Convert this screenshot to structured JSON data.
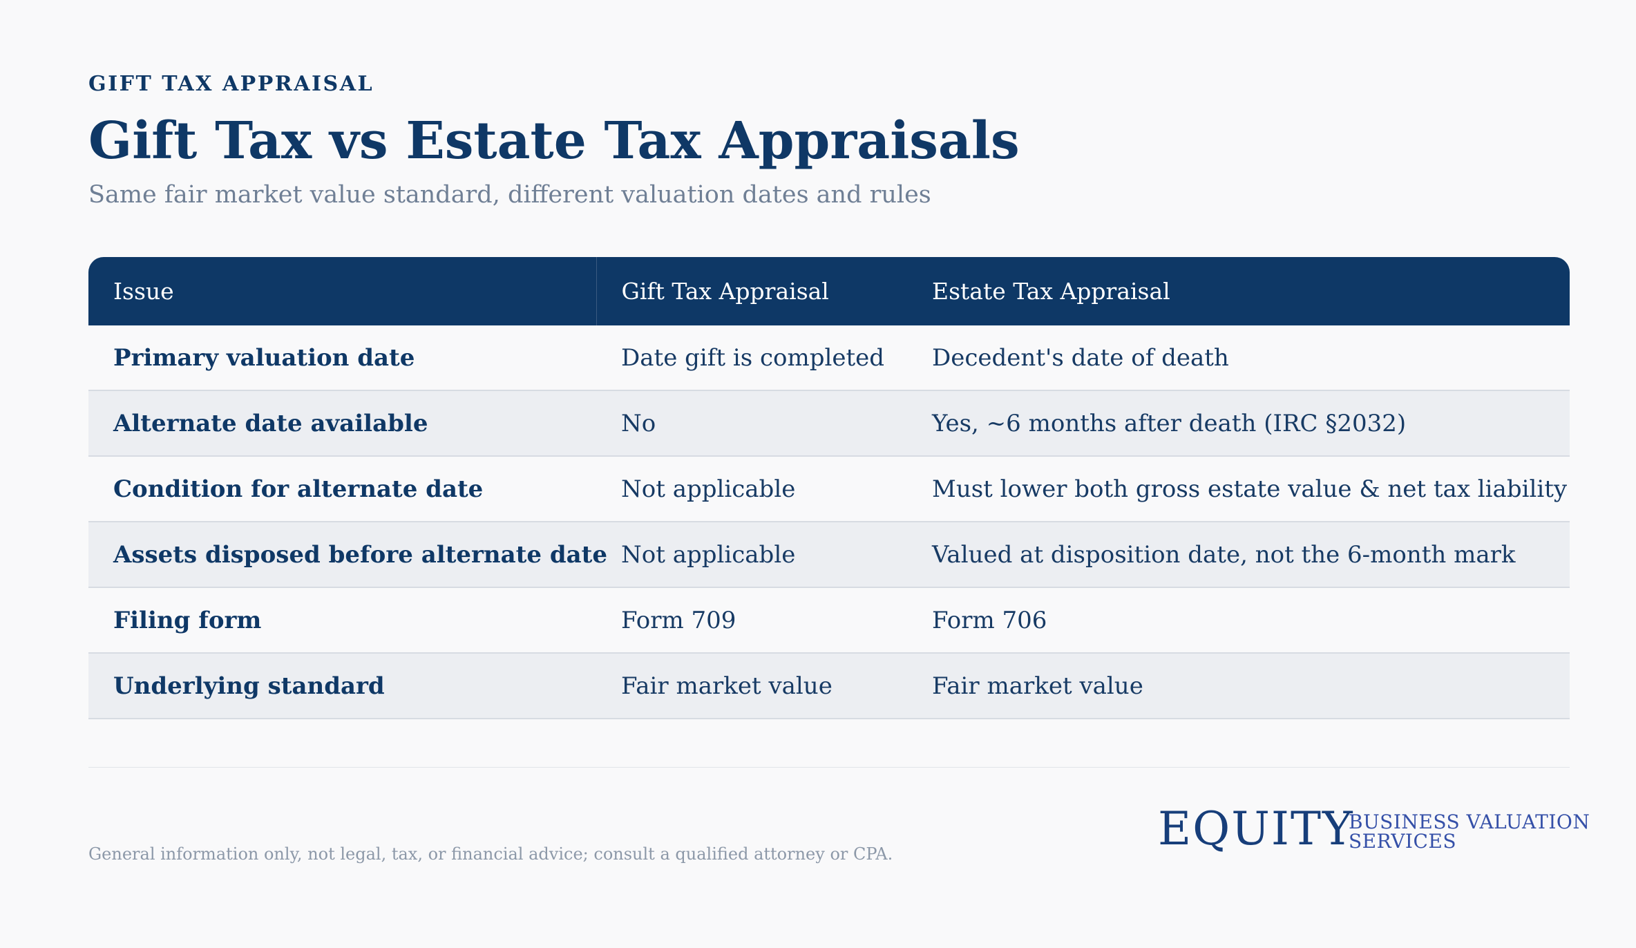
{
  "header": {
    "eyebrow": "GIFT TAX APPRAISAL",
    "title": "Gift Tax vs Estate Tax Appraisals",
    "subtitle": "Same fair market value standard, different valuation dates and rules"
  },
  "table": {
    "columns": [
      "Issue",
      "Gift Tax Appraisal",
      "Estate Tax Appraisal"
    ],
    "rows": [
      [
        "Primary valuation date",
        "Date gift is completed",
        "Decedent's date of death"
      ],
      [
        "Alternate date available",
        "No",
        "Yes, ~6 months after death (IRC §2032)"
      ],
      [
        "Condition for alternate date",
        "Not applicable",
        "Must lower both gross estate value & net tax liability"
      ],
      [
        "Assets disposed before alternate date",
        "Not applicable",
        "Valued at disposition date, not the 6-month mark"
      ],
      [
        "Filing form",
        "Form 709",
        "Form 706"
      ],
      [
        "Underlying standard",
        "Fair market value",
        "Fair market value"
      ]
    ]
  },
  "footer": {
    "disclaimer": "General information only, not legal, tax, or financial advice; consult a qualified attorney or CPA.",
    "logo_word": "EQUITY",
    "logo_line1": "BUSINESS VALUATION",
    "logo_line2": "SERVICES"
  },
  "colors": {
    "navy": "#0e3866",
    "background": "#f9f9fa",
    "stripe": "#eceef2",
    "muted_text": "#6f7f95"
  }
}
